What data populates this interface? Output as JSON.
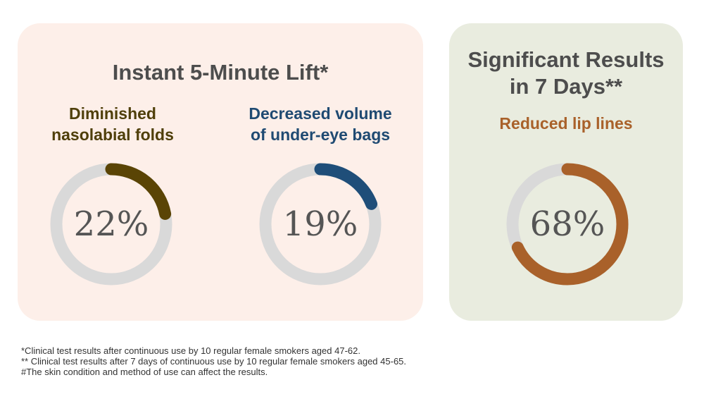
{
  "chart_data": [
    {
      "type": "pie",
      "title": "Instant 5-Minute Lift*",
      "label": "Diminished nasolabial folds",
      "value": 22,
      "display": "22%",
      "color": "#5a4405",
      "track": "#d9d9d9"
    },
    {
      "type": "pie",
      "title": "Instant 5-Minute Lift*",
      "label": "Decreased volume of under-eye bags",
      "value": 19,
      "display": "19%",
      "color": "#1f4e79",
      "track": "#d9d9d9"
    },
    {
      "type": "pie",
      "title": "Significant Results in 7 Days**",
      "label": "Reduced lip lines",
      "value": 68,
      "display": "68%",
      "color": "#a9612a",
      "track": "#d9d9d9"
    }
  ],
  "panel1": {
    "title": "Instant 5-Minute Lift*",
    "sub1_l1": "Diminished",
    "sub1_l2": "nasolabial folds",
    "sub2_l1": "Decreased volume",
    "sub2_l2": "of under-eye bags"
  },
  "panel2": {
    "title_l1": "Significant Results",
    "title_l2": "in 7 Days**",
    "sub": "Reduced lip lines"
  },
  "footnotes": [
    "*Clinical test results after continuous use by 10 regular female smokers aged 47-62.",
    "** Clinical test results after 7 days of continuous use by 10 regular female smokers aged 45-65.",
    "#The skin condition and method of use can affect the results."
  ]
}
